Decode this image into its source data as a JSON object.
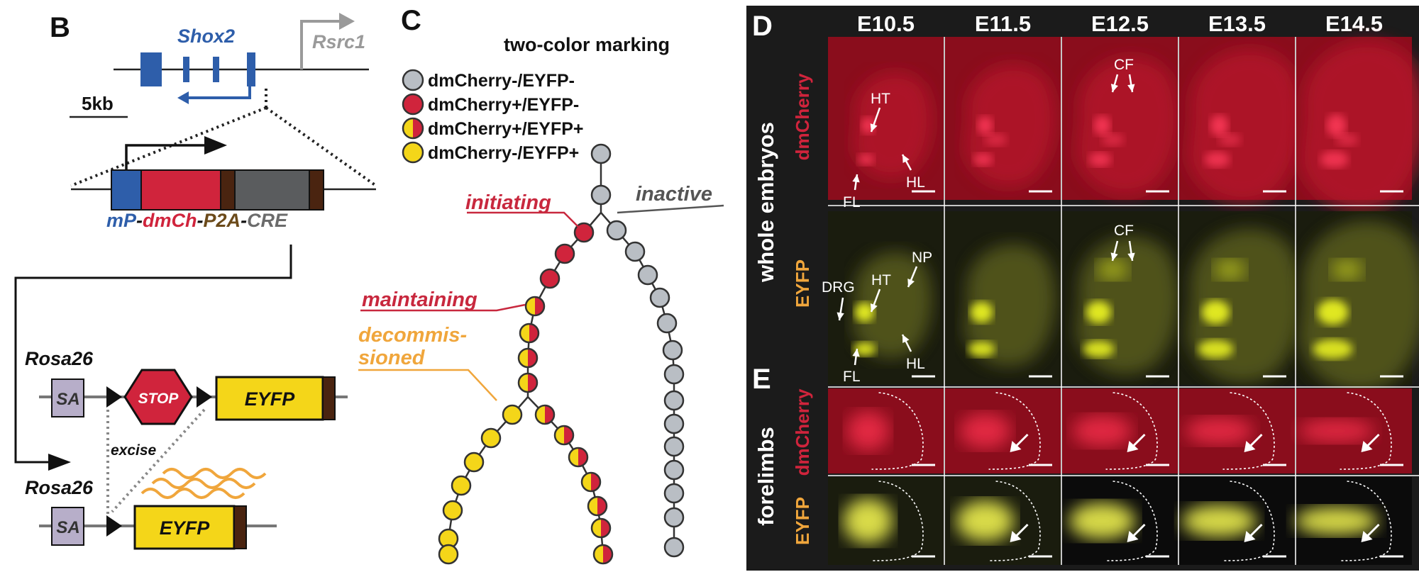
{
  "colors": {
    "shox2_blue": "#2e5eaa",
    "cherry_red": "#d0243c",
    "eyfp_yellow": "#f4d619",
    "grey_cell": "#b9bec4",
    "stop_red": "#d0243c",
    "sa_lilac": "#b7aec9",
    "orange": "#f0a63c",
    "brown": "#4a2410",
    "panel_dark": "#1b1b1b"
  },
  "panel_b": {
    "letter": "B",
    "gene_shox2": "Shox2",
    "gene_rsrc1": "Rsrc1",
    "scale": "5kb",
    "construct": {
      "mp": "mP",
      "dash1": "-",
      "dmch": "dmCh",
      "dash2": "-",
      "p2a": "P2A",
      "dash3": "-",
      "cre": "CRE"
    },
    "rosa_top": "Rosa26",
    "rosa_bottom": "Rosa26",
    "sa_top": "SA",
    "sa_bottom": "SA",
    "stop": "STOP",
    "eyfp_top": "EYFP",
    "eyfp_bottom": "EYFP",
    "excise": "excise"
  },
  "panel_c": {
    "letter": "C",
    "title": "two-color marking",
    "legend": [
      {
        "text": "dmCherry-/EYFP-",
        "icon": "grey-cell-icon"
      },
      {
        "text": "dmCherry+/EYFP-",
        "icon": "red-cell-icon"
      },
      {
        "text": "dmCherry+/EYFP+",
        "icon": "half-red-yellow-cell-icon"
      },
      {
        "text": "dmCherry-/EYFP+",
        "icon": "yellow-cell-icon"
      }
    ],
    "states": {
      "initiating": "initiating",
      "inactive": "inactive",
      "maintaining": "maintaining",
      "decommissioned_1": "decommis-",
      "decommissioned_2": "sioned"
    }
  },
  "panel_d": {
    "letter": "D",
    "stages": [
      "E10.5",
      "E11.5",
      "E12.5",
      "E13.5",
      "E14.5"
    ],
    "row_group": "whole embryos",
    "row_dmcherry": "dmCherry",
    "row_eyfp": "EYFP",
    "annotations": {
      "ht": "HT",
      "fl": "FL",
      "hl": "HL",
      "cf": "CF",
      "drg": "DRG",
      "ht2": "HT",
      "np": "NP",
      "fl2": "FL",
      "hl2": "HL",
      "cf2": "CF"
    }
  },
  "panel_e": {
    "letter": "E",
    "row_group": "forelimbs",
    "row_dmcherry": "dmCherry",
    "row_eyfp": "EYFP"
  }
}
